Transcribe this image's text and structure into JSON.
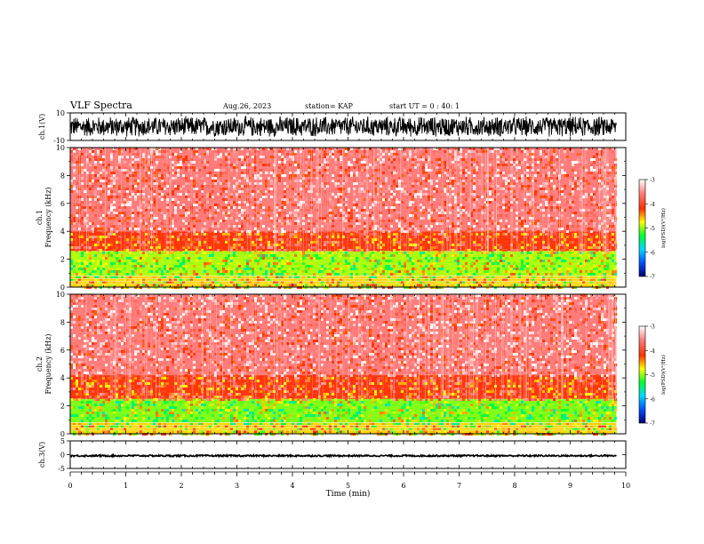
{
  "header": {
    "title": "VLF Spectra",
    "date": "Aug.26, 2023",
    "station": "station= KAP",
    "start": "start  UT =   0 : 40: 1"
  },
  "chart_data": [
    {
      "type": "line",
      "name": "ch1-waveform-panel",
      "ylabel": "ch.1(V)",
      "ylim": [
        -10,
        10
      ],
      "y_ticks": [
        "10",
        "-10"
      ],
      "xlim": [
        0,
        10
      ],
      "data_extent_x": [
        0,
        9.83
      ],
      "signal_range_y": [
        -8,
        8
      ]
    },
    {
      "type": "heatmap",
      "name": "ch1-spectrogram",
      "ylabel": "ch.1",
      "ylabel2": "Frequency (kHz)",
      "ylim": [
        0,
        10
      ],
      "y_ticks": [
        "0",
        "2",
        "4",
        "6",
        "8",
        "10"
      ],
      "xlim": [
        0,
        10
      ],
      "data_extent_x": [
        0,
        9.83
      ],
      "colorbar": {
        "label": "log(PSD)(V²/Hz)",
        "range": [
          -7,
          -3
        ],
        "ticks": [
          "-3",
          "-4",
          "-5",
          "-6",
          "-7"
        ],
        "colors": [
          "#000070",
          "#0050ff",
          "#00d8ff",
          "#00ff30",
          "#ffff00",
          "#ff3000",
          "#ff8080",
          "#ffffff"
        ]
      },
      "bands_khz": [
        {
          "from": 0,
          "to": 0.8,
          "level": -4.6
        },
        {
          "from": 0.8,
          "to": 2.6,
          "level": -4.9
        },
        {
          "from": 2.6,
          "to": 4.0,
          "level": -4.1
        },
        {
          "from": 4.0,
          "to": 10,
          "level": -3.6
        }
      ]
    },
    {
      "type": "heatmap",
      "name": "ch2-spectrogram",
      "ylabel": "ch.2",
      "ylabel2": "Frequency (kHz)",
      "ylim": [
        0,
        10
      ],
      "y_ticks": [
        "0",
        "2",
        "4",
        "6",
        "8",
        "10"
      ],
      "xlim": [
        0,
        10
      ],
      "data_extent_x": [
        0,
        9.83
      ],
      "colorbar": {
        "label": "log(PSD)(V²/Hz)",
        "range": [
          -7,
          -3
        ],
        "ticks": [
          "-3",
          "-4",
          "-5",
          "-6",
          "-7"
        ],
        "colors": [
          "#000070",
          "#0050ff",
          "#00d8ff",
          "#00ff30",
          "#ffff00",
          "#ff3000",
          "#ff8080",
          "#ffffff"
        ]
      },
      "bands_khz": [
        {
          "from": 0,
          "to": 0.8,
          "level": -4.6
        },
        {
          "from": 0.8,
          "to": 2.5,
          "level": -5.0
        },
        {
          "from": 2.5,
          "to": 4.2,
          "level": -4.1
        },
        {
          "from": 4.2,
          "to": 10,
          "level": -3.6
        }
      ]
    },
    {
      "type": "line",
      "name": "ch3-waveform-panel",
      "ylabel": "ch.3(V)",
      "ylim": [
        -5,
        5
      ],
      "y_ticks": [
        "5",
        "0",
        "-5"
      ],
      "xlim": [
        0,
        10
      ],
      "data_extent_x": [
        0,
        9.83
      ],
      "signal_range_y": [
        -0.7,
        -0.1
      ],
      "xlabel": "Time (min)",
      "x_ticks": [
        "0",
        "1",
        "2",
        "3",
        "4",
        "5",
        "6",
        "7",
        "8",
        "9",
        "10"
      ]
    }
  ]
}
